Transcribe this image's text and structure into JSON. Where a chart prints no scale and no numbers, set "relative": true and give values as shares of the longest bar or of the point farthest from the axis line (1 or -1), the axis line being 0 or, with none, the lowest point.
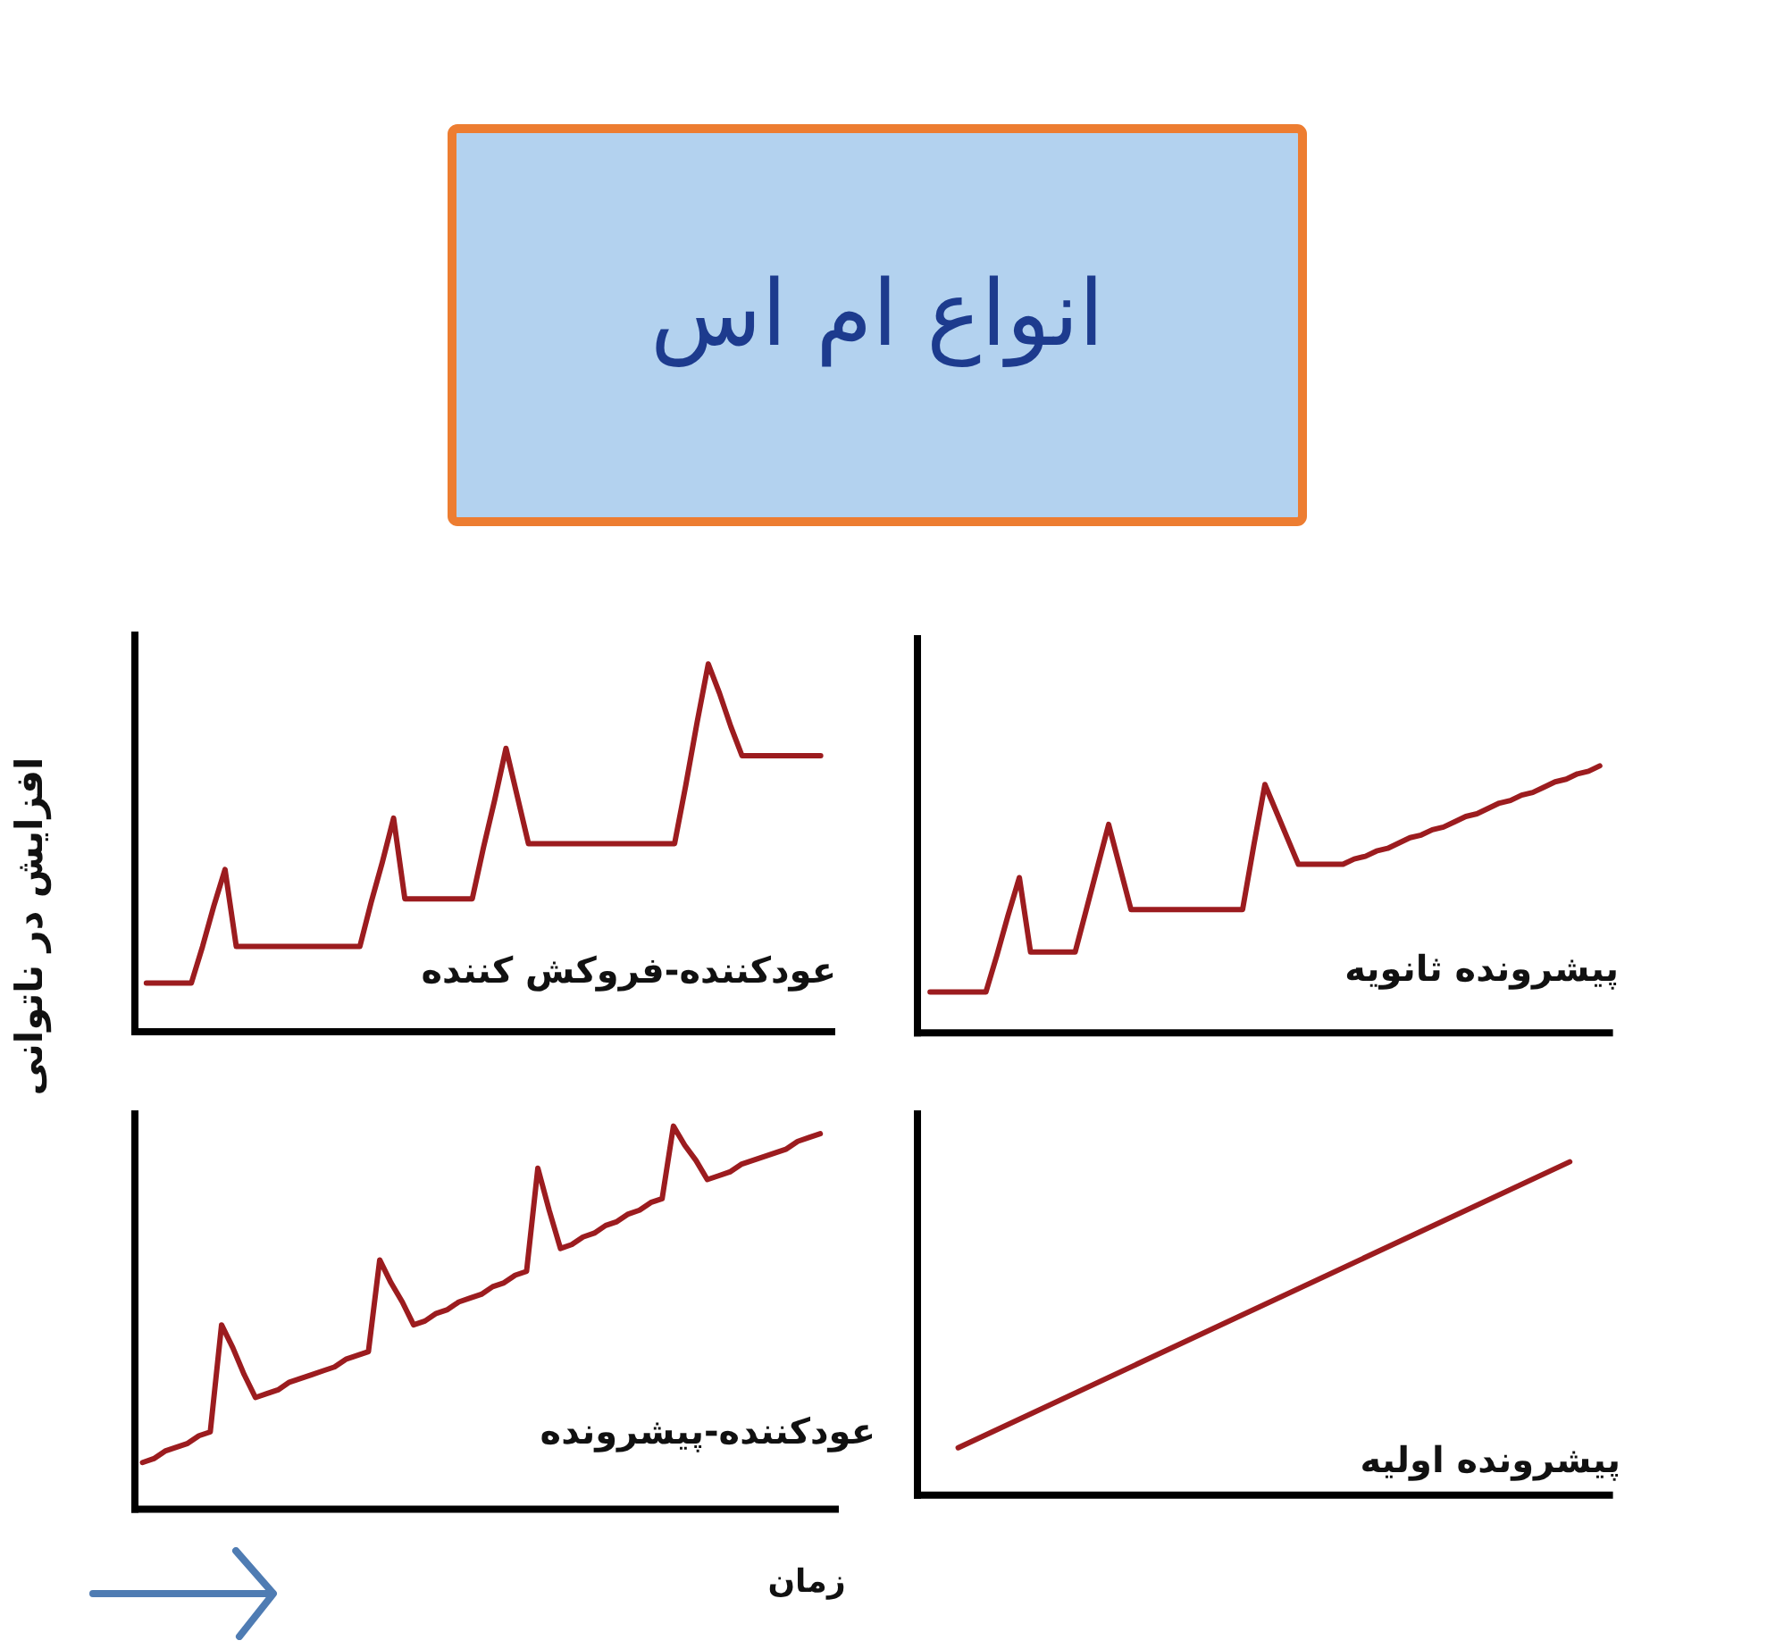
{
  "chart_data": [
    {
      "type": "other",
      "title": "انواع ام اس"
    },
    {
      "type": "line",
      "title": "عودکننده-فروکش کننده",
      "ylabel": "افزایش در ناتوانی",
      "relative": true,
      "categories": [
        null,
        null,
        null,
        null,
        null,
        null,
        null,
        null,
        null,
        null,
        null,
        null,
        null,
        null,
        null,
        null,
        null,
        null,
        null,
        null,
        null,
        null,
        null,
        null,
        null,
        null,
        null,
        null,
        null,
        null,
        null,
        null,
        null,
        null,
        null,
        null,
        null,
        null,
        null,
        null,
        null,
        null,
        null,
        null,
        null,
        null,
        null,
        null,
        null,
        null,
        null,
        null,
        null,
        null,
        null,
        null,
        null,
        null,
        null,
        null,
        null
      ],
      "series": [
        {
          "color": "#9c1c1f",
          "values": [
            0.13,
            0.13,
            0.13,
            0.13,
            0.13,
            0.23,
            0.34,
            0.44,
            0.23,
            0.23,
            0.23,
            0.23,
            0.23,
            0.23,
            0.23,
            0.23,
            0.23,
            0.23,
            0.23,
            0.23,
            0.35,
            0.46,
            0.58,
            0.36,
            0.36,
            0.36,
            0.36,
            0.36,
            0.36,
            0.36,
            0.5,
            0.63,
            0.77,
            0.64,
            0.51,
            0.51,
            0.51,
            0.51,
            0.51,
            0.51,
            0.51,
            0.51,
            0.51,
            0.51,
            0.51,
            0.51,
            0.51,
            0.51,
            0.67,
            0.84,
            1,
            0.92,
            0.83,
            0.75,
            0.75,
            0.75,
            0.75,
            0.75,
            0.75,
            0.75,
            0.75
          ]
        }
      ]
    },
    {
      "type": "line",
      "title": "پیشرونده ثانویه",
      "relative": true,
      "categories": [
        null,
        null,
        null,
        null,
        null,
        null,
        null,
        null,
        null,
        null,
        null,
        null,
        null,
        null,
        null,
        null,
        null,
        null,
        null,
        null,
        null,
        null,
        null,
        null,
        null,
        null,
        null,
        null,
        null,
        null,
        null,
        null,
        null,
        null,
        null,
        null,
        null,
        null,
        null,
        null,
        null,
        null,
        null,
        null,
        null,
        null,
        null,
        null,
        null,
        null,
        null,
        null,
        null,
        null,
        null,
        null,
        null,
        null,
        null,
        null,
        null
      ],
      "series": [
        {
          "color": "#9c1c1f",
          "values": [
            0.15,
            0.15,
            0.15,
            0.15,
            0.15,
            0.15,
            0.29,
            0.44,
            0.58,
            0.3,
            0.3,
            0.3,
            0.3,
            0.3,
            0.46,
            0.62,
            0.78,
            0.62,
            0.46,
            0.46,
            0.46,
            0.46,
            0.46,
            0.46,
            0.46,
            0.46,
            0.46,
            0.46,
            0.46,
            0.7,
            0.93,
            0.83,
            0.73,
            0.63,
            0.63,
            0.63,
            0.63,
            0.63,
            0.65,
            0.66,
            0.68,
            0.69,
            0.71,
            0.73,
            0.74,
            0.76,
            0.77,
            0.79,
            0.81,
            0.82,
            0.84,
            0.86,
            0.87,
            0.89,
            0.9,
            0.92,
            0.94,
            0.95,
            0.97,
            0.98,
            1
          ]
        }
      ]
    },
    {
      "type": "line",
      "title": "عودکننده-پیشرونده",
      "xlabel": "زمان",
      "relative": true,
      "categories": [
        null,
        null,
        null,
        null,
        null,
        null,
        null,
        null,
        null,
        null,
        null,
        null,
        null,
        null,
        null,
        null,
        null,
        null,
        null,
        null,
        null,
        null,
        null,
        null,
        null,
        null,
        null,
        null,
        null,
        null,
        null,
        null,
        null,
        null,
        null,
        null,
        null,
        null,
        null,
        null,
        null,
        null,
        null,
        null,
        null,
        null,
        null,
        null,
        null,
        null,
        null,
        null,
        null,
        null,
        null,
        null,
        null,
        null,
        null,
        null,
        null
      ],
      "series": [
        {
          "color": "#9c1c1f",
          "values": [
            0.12,
            0.13,
            0.15,
            0.16,
            0.17,
            0.19,
            0.2,
            0.48,
            0.42,
            0.35,
            0.29,
            0.3,
            0.31,
            0.33,
            0.34,
            0.35,
            0.36,
            0.37,
            0.39,
            0.4,
            0.41,
            0.65,
            0.59,
            0.54,
            0.48,
            0.49,
            0.51,
            0.52,
            0.54,
            0.55,
            0.56,
            0.58,
            0.59,
            0.61,
            0.62,
            0.89,
            0.78,
            0.68,
            0.69,
            0.71,
            0.72,
            0.74,
            0.75,
            0.77,
            0.78,
            0.8,
            0.81,
            1,
            0.95,
            0.91,
            0.86,
            0.87,
            0.88,
            0.9,
            0.91,
            0.92,
            0.93,
            0.94,
            0.96,
            0.97,
            0.98
          ]
        }
      ]
    },
    {
      "type": "line",
      "title": "پیشرونده اولیه",
      "relative": true,
      "categories": [
        null,
        null
      ],
      "series": [
        {
          "color": "#9c1c1f",
          "values": [
            0.14,
            1
          ]
        }
      ]
    }
  ]
}
